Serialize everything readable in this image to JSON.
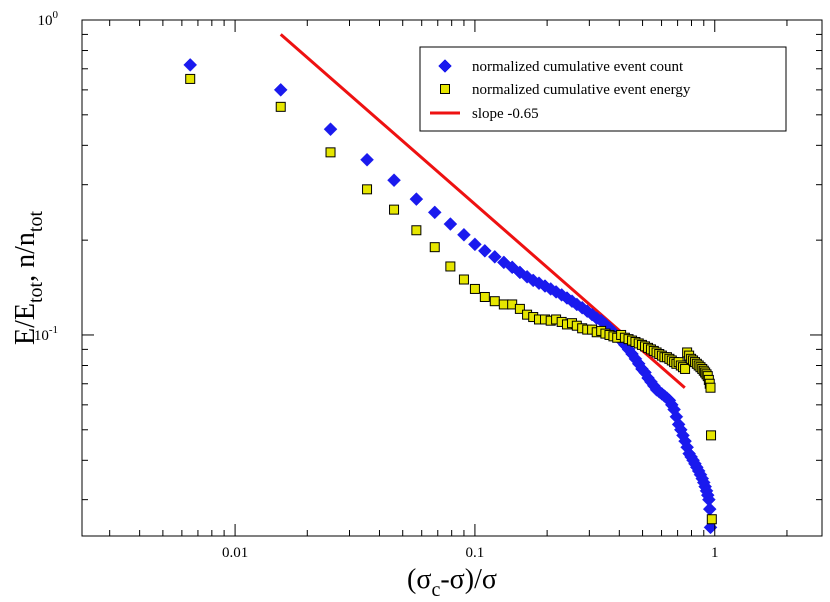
{
  "chart_data": {
    "type": "scatter",
    "x_scale": "log",
    "y_scale": "log",
    "xlim": [
      0.0023,
      2.8
    ],
    "ylim": [
      0.023,
      1.0
    ],
    "xlabel": {
      "main": "(σ",
      "sub": "c",
      "rest": "-σ)/σ"
    },
    "ylabel": {
      "p1": "E/E",
      "s1": "tot",
      "p2": ", n/n",
      "s2": "tot"
    },
    "x_ticks": [
      {
        "value": 0.01,
        "label": "0.01"
      },
      {
        "value": 0.1,
        "label": "0.1"
      },
      {
        "value": 1,
        "label": "1"
      }
    ],
    "y_ticks": [
      {
        "value": 1.0,
        "base": "10",
        "exp": "0"
      },
      {
        "value": 0.1,
        "base": "10",
        "exp": "-1"
      }
    ],
    "legend": {
      "position": "top-right",
      "entries": [
        {
          "label": "normalized cumulative event count",
          "series": "count"
        },
        {
          "label": "normalized cumulative event energy",
          "series": "energy"
        },
        {
          "label": "slope -0.65",
          "series": "fit"
        }
      ]
    },
    "series": [
      {
        "name": "normalized cumulative event count",
        "key": "count",
        "marker": "diamond",
        "color": "#1a1aee",
        "x": [
          0.0065,
          0.0155,
          0.025,
          0.0355,
          0.046,
          0.057,
          0.068,
          0.079,
          0.09,
          0.1,
          0.11,
          0.121,
          0.132,
          0.143,
          0.154,
          0.165,
          0.175,
          0.185,
          0.196,
          0.207,
          0.218,
          0.23,
          0.242,
          0.254,
          0.266,
          0.28,
          0.294,
          0.308,
          0.322,
          0.336,
          0.35,
          0.364,
          0.378,
          0.392,
          0.407,
          0.422,
          0.437,
          0.452,
          0.467,
          0.482,
          0.497,
          0.512,
          0.527,
          0.542,
          0.557,
          0.572,
          0.587,
          0.602,
          0.617,
          0.632,
          0.647,
          0.662,
          0.677,
          0.692,
          0.707,
          0.722,
          0.737,
          0.752,
          0.767,
          0.782,
          0.797,
          0.812,
          0.827,
          0.842,
          0.857,
          0.872,
          0.887,
          0.9,
          0.912,
          0.924,
          0.935,
          0.945,
          0.953,
          0.96
        ],
        "y": [
          0.72,
          0.6,
          0.45,
          0.36,
          0.31,
          0.27,
          0.245,
          0.225,
          0.208,
          0.194,
          0.185,
          0.177,
          0.17,
          0.164,
          0.158,
          0.153,
          0.149,
          0.146,
          0.143,
          0.14,
          0.137,
          0.134,
          0.131,
          0.128,
          0.125,
          0.122,
          0.119,
          0.116,
          0.113,
          0.111,
          0.108,
          0.105,
          0.102,
          0.099,
          0.096,
          0.093,
          0.09,
          0.087,
          0.084,
          0.081,
          0.078,
          0.076,
          0.073,
          0.071,
          0.069,
          0.067,
          0.066,
          0.065,
          0.064,
          0.063,
          0.062,
          0.06,
          0.058,
          0.055,
          0.052,
          0.05,
          0.048,
          0.046,
          0.044,
          0.042,
          0.041,
          0.04,
          0.039,
          0.038,
          0.037,
          0.036,
          0.035,
          0.034,
          0.033,
          0.032,
          0.031,
          0.03,
          0.028,
          0.0245
        ]
      },
      {
        "name": "normalized cumulative event energy",
        "key": "energy",
        "marker": "square",
        "color": "#e6e600",
        "x": [
          0.0065,
          0.0155,
          0.025,
          0.0355,
          0.046,
          0.057,
          0.068,
          0.079,
          0.09,
          0.1,
          0.11,
          0.121,
          0.132,
          0.143,
          0.154,
          0.165,
          0.175,
          0.185,
          0.196,
          0.207,
          0.218,
          0.23,
          0.242,
          0.254,
          0.266,
          0.28,
          0.294,
          0.308,
          0.322,
          0.336,
          0.35,
          0.364,
          0.378,
          0.392,
          0.407,
          0.422,
          0.437,
          0.452,
          0.467,
          0.482,
          0.497,
          0.512,
          0.527,
          0.542,
          0.557,
          0.572,
          0.587,
          0.602,
          0.617,
          0.632,
          0.647,
          0.662,
          0.677,
          0.692,
          0.707,
          0.722,
          0.737,
          0.752,
          0.767,
          0.782,
          0.797,
          0.812,
          0.827,
          0.842,
          0.857,
          0.872,
          0.887,
          0.9,
          0.912,
          0.924,
          0.935,
          0.945,
          0.953,
          0.96,
          0.965,
          0.972
        ],
        "y": [
          0.65,
          0.53,
          0.38,
          0.29,
          0.25,
          0.215,
          0.19,
          0.165,
          0.15,
          0.14,
          0.132,
          0.128,
          0.125,
          0.125,
          0.121,
          0.116,
          0.114,
          0.112,
          0.112,
          0.111,
          0.112,
          0.11,
          0.108,
          0.109,
          0.107,
          0.105,
          0.104,
          0.104,
          0.102,
          0.103,
          0.101,
          0.1,
          0.099,
          0.098,
          0.1,
          0.098,
          0.097,
          0.096,
          0.095,
          0.094,
          0.093,
          0.092,
          0.091,
          0.09,
          0.089,
          0.088,
          0.087,
          0.086,
          0.085,
          0.085,
          0.084,
          0.083,
          0.082,
          0.081,
          0.082,
          0.08,
          0.079,
          0.078,
          0.088,
          0.086,
          0.084,
          0.083,
          0.082,
          0.081,
          0.08,
          0.079,
          0.078,
          0.077,
          0.076,
          0.075,
          0.074,
          0.072,
          0.07,
          0.068,
          0.048,
          0.026
        ]
      },
      {
        "name": "slope -0.65",
        "key": "fit",
        "marker": "line",
        "color": "#ee1111",
        "x": [
          0.0155,
          0.75
        ],
        "y": [
          0.9,
          0.068
        ]
      }
    ]
  }
}
